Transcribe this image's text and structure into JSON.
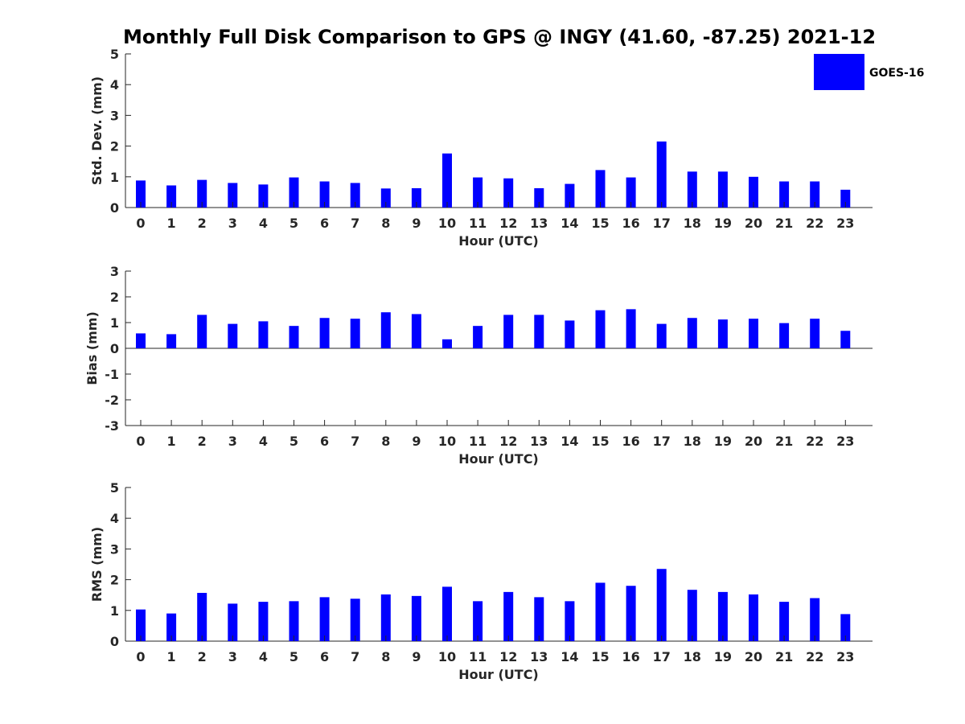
{
  "title": "Monthly Full Disk Comparison to GPS @ INGY (41.60, -87.25) 2021-12",
  "bar_color": "#0000ff",
  "legend": {
    "label": "GOES-16"
  },
  "chart_data": [
    {
      "type": "bar",
      "xlabel": "Hour (UTC)",
      "ylabel": "Std. Dev. (mm)",
      "ylim": [
        0,
        5
      ],
      "yticks": [
        0,
        1,
        2,
        3,
        4,
        5
      ],
      "categories": [
        "0",
        "1",
        "2",
        "3",
        "4",
        "5",
        "6",
        "7",
        "8",
        "9",
        "10",
        "11",
        "12",
        "13",
        "14",
        "15",
        "16",
        "17",
        "18",
        "19",
        "20",
        "21",
        "22",
        "23"
      ],
      "series": [
        {
          "name": "GOES-16",
          "values": [
            0.88,
            0.72,
            0.9,
            0.8,
            0.75,
            0.98,
            0.85,
            0.8,
            0.62,
            0.63,
            1.76,
            0.98,
            0.95,
            0.63,
            0.77,
            1.22,
            0.98,
            2.15,
            1.17,
            1.17,
            1.0,
            0.85,
            0.85,
            0.58
          ]
        }
      ]
    },
    {
      "type": "bar",
      "xlabel": "Hour (UTC)",
      "ylabel": "Bias (mm)",
      "ylim": [
        -3,
        3
      ],
      "yticks": [
        -3,
        -2,
        -1,
        0,
        1,
        2,
        3
      ],
      "categories": [
        "0",
        "1",
        "2",
        "3",
        "4",
        "5",
        "6",
        "7",
        "8",
        "9",
        "10",
        "11",
        "12",
        "13",
        "14",
        "15",
        "16",
        "17",
        "18",
        "19",
        "20",
        "21",
        "22",
        "23"
      ],
      "series": [
        {
          "name": "GOES-16",
          "values": [
            0.58,
            0.55,
            1.3,
            0.95,
            1.05,
            0.87,
            1.18,
            1.15,
            1.4,
            1.33,
            0.35,
            0.87,
            1.3,
            1.3,
            1.08,
            1.48,
            1.52,
            0.95,
            1.18,
            1.12,
            1.15,
            0.98,
            1.15,
            0.68
          ]
        }
      ]
    },
    {
      "type": "bar",
      "xlabel": "Hour (UTC)",
      "ylabel": "RMS (mm)",
      "ylim": [
        0,
        5
      ],
      "yticks": [
        0,
        1,
        2,
        3,
        4,
        5
      ],
      "categories": [
        "0",
        "1",
        "2",
        "3",
        "4",
        "5",
        "6",
        "7",
        "8",
        "9",
        "10",
        "11",
        "12",
        "13",
        "14",
        "15",
        "16",
        "17",
        "18",
        "19",
        "20",
        "21",
        "22",
        "23"
      ],
      "series": [
        {
          "name": "GOES-16",
          "values": [
            1.03,
            0.9,
            1.57,
            1.22,
            1.28,
            1.3,
            1.43,
            1.38,
            1.52,
            1.47,
            1.77,
            1.3,
            1.6,
            1.43,
            1.3,
            1.9,
            1.8,
            2.35,
            1.67,
            1.6,
            1.52,
            1.28,
            1.4,
            0.88
          ]
        }
      ]
    }
  ]
}
